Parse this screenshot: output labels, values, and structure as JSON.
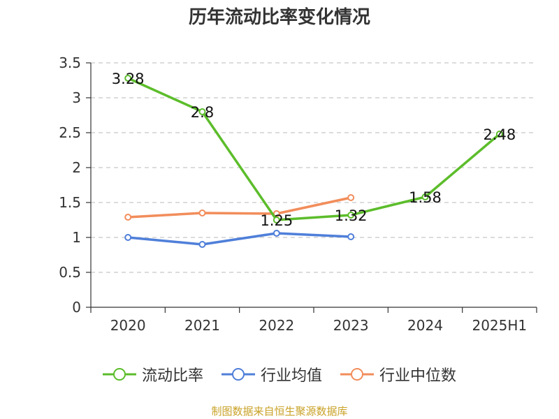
{
  "chart_data": {
    "type": "line",
    "title": "历年流动比率变化情况",
    "categories": [
      "2020",
      "2021",
      "2022",
      "2023",
      "2024",
      "2025H1"
    ],
    "y_ticks": [
      "0",
      "0.5",
      "1",
      "1.5",
      "2",
      "2.5",
      "3",
      "3.5"
    ],
    "ylim": [
      0,
      3.5
    ],
    "grid": true,
    "legend_position": "bottom",
    "series": [
      {
        "name": "流动比率",
        "color": "#5cbd2b",
        "values": [
          3.28,
          2.8,
          1.25,
          1.32,
          1.58,
          2.48
        ],
        "labels": [
          "3.28",
          "2.8",
          "1.25",
          "1.32",
          "1.58",
          "2.48"
        ]
      },
      {
        "name": "行业均值",
        "color": "#4f7fd9",
        "values": [
          1.0,
          0.9,
          1.06,
          1.01,
          null,
          null
        ]
      },
      {
        "name": "行业中位数",
        "color": "#f28d5b",
        "values": [
          1.29,
          1.35,
          1.34,
          1.57,
          null,
          null
        ]
      }
    ]
  },
  "source_text": "制图数据来自恒生聚源数据库"
}
